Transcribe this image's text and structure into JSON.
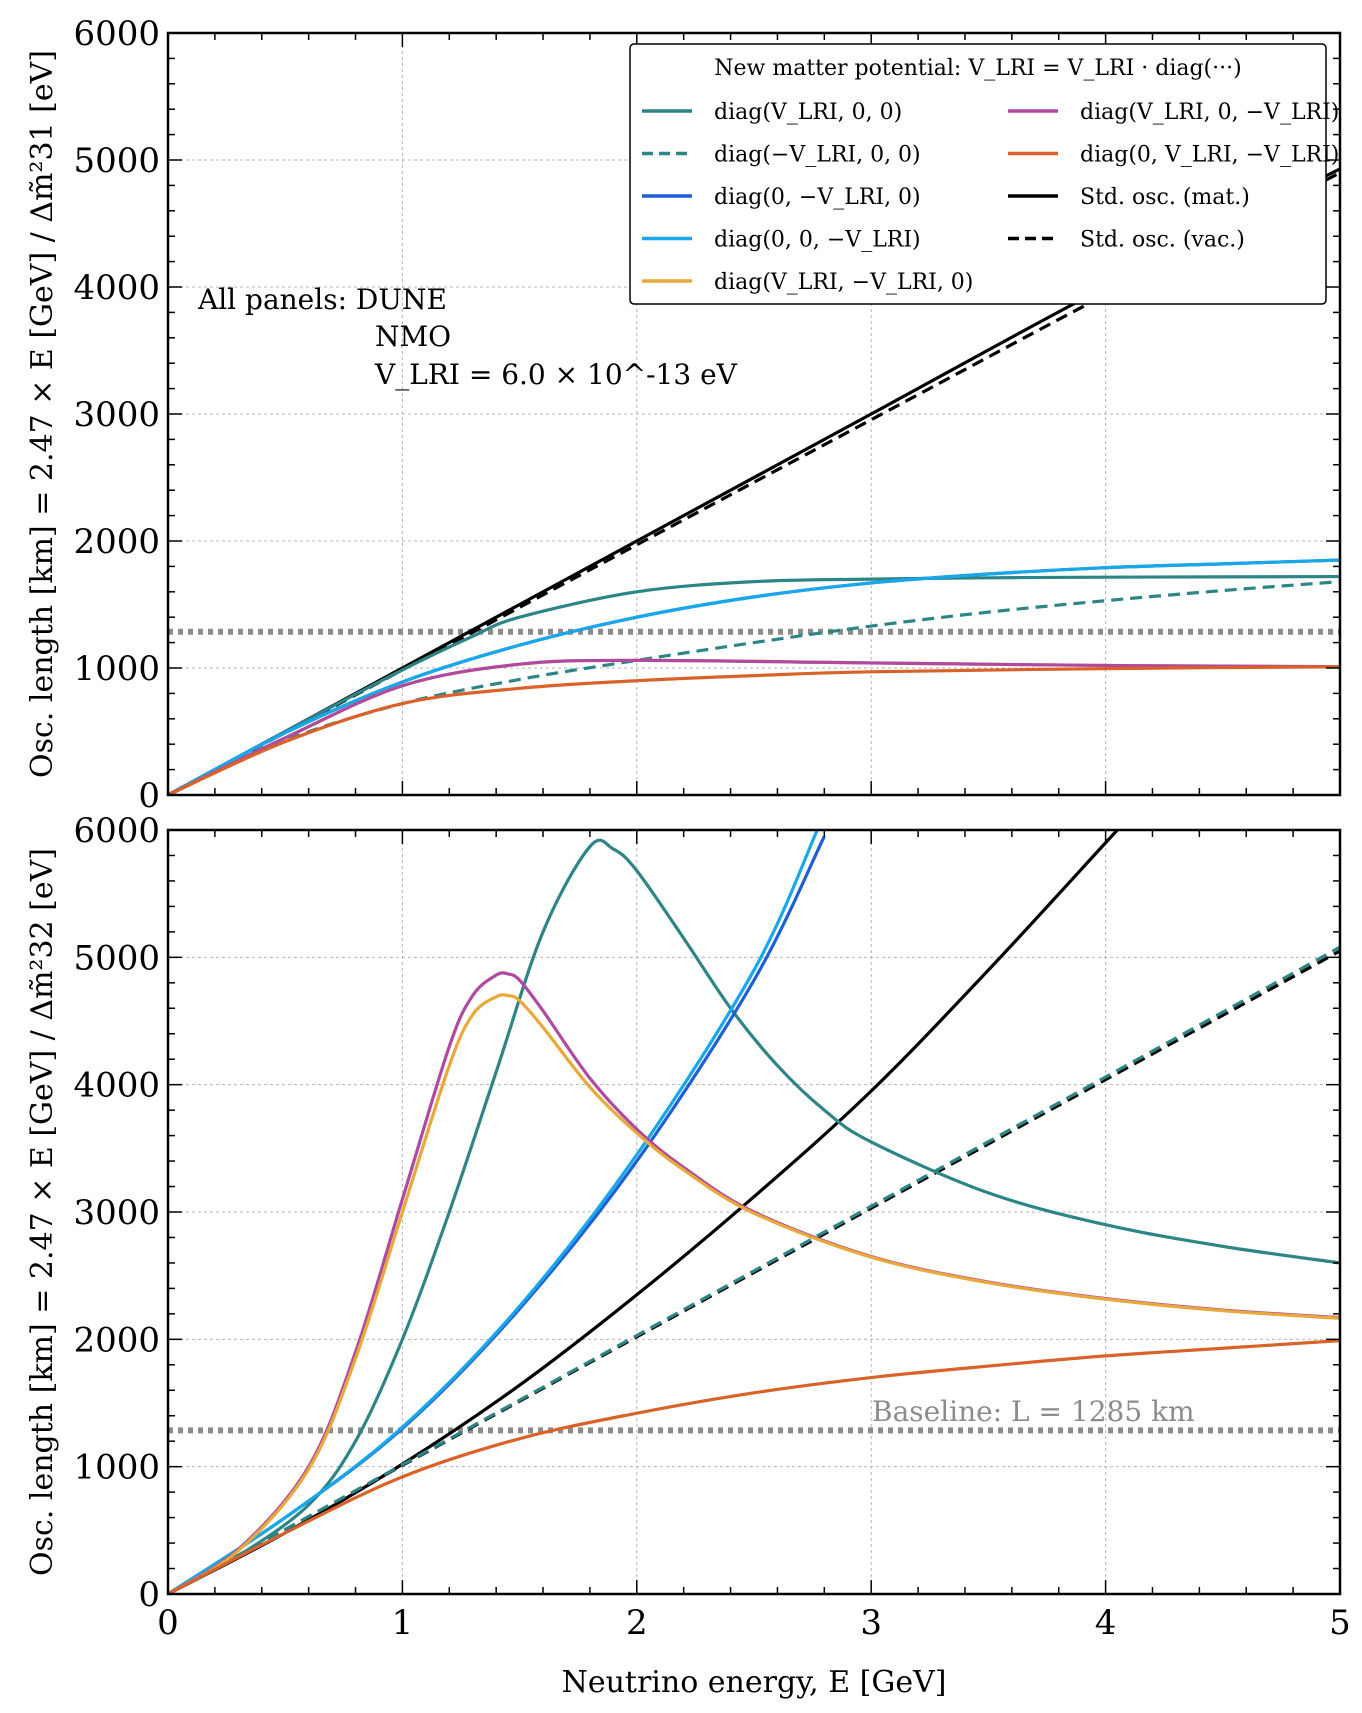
{
  "colors": {
    "teal": "#2e8585",
    "blue": "#1f5fd6",
    "lightblue": "#18a8ea",
    "orange": "#e8a93a",
    "magenta": "#b04aa0",
    "redorange": "#d9622a",
    "black": "#000000",
    "baseline": "#8c8c8c",
    "grid": "#b5b5b5"
  },
  "figure": {
    "xlabel": "Neutrino energy, E [GeV]",
    "annotation_lines": [
      "All panels: DUNE",
      "NMO",
      "V_LRI = 6.0 × 10^-13 eV"
    ],
    "baseline_label": "Baseline: L = 1285 km",
    "legend_title": "New matter potential: V_LRI = V_LRI · diag(···)",
    "legend_entries": [
      {
        "key": "s1",
        "label": "diag(V_LRI, 0, 0)",
        "color": "#2e8585",
        "dash": false
      },
      {
        "key": "s2",
        "label": "diag(−V_LRI, 0, 0)",
        "color": "#2e8585",
        "dash": true
      },
      {
        "key": "s3",
        "label": "diag(0, −V_LRI, 0)",
        "color": "#1f5fd6",
        "dash": false
      },
      {
        "key": "s4",
        "label": "diag(0, 0, −V_LRI)",
        "color": "#18a8ea",
        "dash": false
      },
      {
        "key": "s5",
        "label": "diag(V_LRI, −V_LRI, 0)",
        "color": "#e8a93a",
        "dash": false
      },
      {
        "key": "s6",
        "label": "diag(V_LRI, 0, −V_LRI)",
        "color": "#b04aa0",
        "dash": false
      },
      {
        "key": "s7",
        "label": "diag(0, V_LRI, −V_LRI)",
        "color": "#d9622a",
        "dash": false
      },
      {
        "key": "s8",
        "label": "Std. osc. (mat.)",
        "color": "#000000",
        "dash": false
      },
      {
        "key": "s9",
        "label": "Std. osc. (vac.)",
        "color": "#000000",
        "dash": true
      }
    ]
  },
  "chart_data": [
    {
      "type": "line",
      "panel": "top",
      "ylabel": "Osc. length [km] = 2.47 × E [GeV] / Δm̃²31 [eV]",
      "xlim": [
        0,
        5
      ],
      "ylim": [
        0,
        6000
      ],
      "xticks": [
        0,
        1,
        2,
        3,
        4,
        5
      ],
      "yticks": [
        0,
        1000,
        2000,
        3000,
        4000,
        5000,
        6000
      ],
      "grid": true,
      "baseline_value": 1285,
      "series": [
        {
          "key": "s8",
          "name": "Std. osc. (mat.)",
          "x": [
            0,
            1,
            2,
            3,
            4,
            5
          ],
          "y": [
            0,
            1000,
            2000,
            3000,
            4000,
            4930
          ]
        },
        {
          "key": "s9",
          "name": "Std. osc. (vac.)",
          "x": [
            0,
            1,
            2,
            3,
            4,
            5
          ],
          "y": [
            0,
            985,
            1970,
            2955,
            3940,
            4900
          ]
        },
        {
          "key": "s1",
          "name": "diag(V_LRI, 0, 0)",
          "x": [
            0,
            0.5,
            1,
            1.3,
            1.5,
            2,
            2.5,
            3,
            3.5,
            4,
            5
          ],
          "y": [
            0,
            500,
            985,
            1250,
            1400,
            1600,
            1680,
            1700,
            1710,
            1715,
            1720
          ]
        },
        {
          "key": "s2",
          "name": "diag(−V_LRI, 0, 0)",
          "x": [
            0,
            0.5,
            1,
            1.5,
            2,
            2.5,
            3,
            3.5,
            4,
            4.5,
            5
          ],
          "y": [
            0,
            430,
            720,
            910,
            1060,
            1200,
            1330,
            1440,
            1530,
            1610,
            1680
          ]
        },
        {
          "key": "s3",
          "name": "diag(0, −V_LRI, 0)",
          "x": [
            0,
            0.5,
            1,
            1.5,
            2,
            2.5,
            3,
            3.5,
            4,
            4.5,
            5
          ],
          "y": [
            0,
            490,
            890,
            1180,
            1400,
            1560,
            1670,
            1740,
            1790,
            1820,
            1850
          ]
        },
        {
          "key": "s4",
          "name": "diag(0, 0, −V_LRI)",
          "x": [
            0,
            0.5,
            1,
            1.5,
            2,
            2.5,
            3,
            3.5,
            4,
            4.5,
            5
          ],
          "y": [
            0,
            490,
            890,
            1180,
            1400,
            1560,
            1670,
            1740,
            1790,
            1820,
            1850
          ]
        },
        {
          "key": "s5",
          "name": "diag(V_LRI, −V_LRI, 0)",
          "x": [
            0,
            0.5,
            1,
            1.5,
            2,
            3,
            4,
            5
          ],
          "y": [
            0,
            450,
            860,
            1030,
            1060,
            1040,
            1020,
            1010
          ]
        },
        {
          "key": "s6",
          "name": "diag(V_LRI, 0, −V_LRI)",
          "x": [
            0,
            0.5,
            1,
            1.5,
            2,
            3,
            4,
            5
          ],
          "y": [
            0,
            450,
            860,
            1030,
            1060,
            1040,
            1020,
            1010
          ]
        },
        {
          "key": "s7",
          "name": "diag(0, V_LRI, −V_LRI)",
          "x": [
            0,
            0.5,
            1,
            1.5,
            2,
            2.5,
            3,
            4,
            5
          ],
          "y": [
            0,
            420,
            720,
            840,
            900,
            940,
            970,
            995,
            1010
          ]
        }
      ]
    },
    {
      "type": "line",
      "panel": "bottom",
      "ylabel": "Osc. length [km] = 2.47 × E [GeV] / Δm̃²32 [eV]",
      "xlim": [
        0,
        5
      ],
      "ylim": [
        0,
        6000
      ],
      "xticks": [
        0,
        1,
        2,
        3,
        4,
        5
      ],
      "yticks": [
        0,
        1000,
        2000,
        3000,
        4000,
        5000,
        6000
      ],
      "grid": true,
      "baseline_value": 1285,
      "series": [
        {
          "key": "s8",
          "name": "Std. osc. (mat.)",
          "x": [
            0,
            0.5,
            1,
            1.5,
            2,
            2.5,
            3,
            3.5,
            4,
            4.05
          ],
          "y": [
            0,
            480,
            1020,
            1640,
            2350,
            3120,
            3950,
            4900,
            5900,
            6000
          ]
        },
        {
          "key": "s9",
          "name": "Std. osc. (vac.)",
          "x": [
            0,
            1,
            2,
            3,
            4,
            5
          ],
          "y": [
            0,
            1010,
            2020,
            3030,
            4040,
            5050
          ]
        },
        {
          "key": "s2",
          "name": "diag(−V_LRI, 0, 0)",
          "x": [
            0,
            1,
            2,
            3,
            4,
            5
          ],
          "y": [
            0,
            1015,
            2030,
            3045,
            4060,
            5080
          ]
        },
        {
          "key": "s1",
          "name": "diag(V_LRI, 0, 0)",
          "x": [
            0,
            0.3,
            0.6,
            0.8,
            1,
            1.2,
            1.4,
            1.6,
            1.8,
            1.9,
            2,
            2.2,
            2.4,
            2.6,
            2.8,
            3,
            3.5,
            4,
            4.5,
            5
          ],
          "y": [
            0,
            300,
            700,
            1200,
            2000,
            3000,
            4100,
            5200,
            5870,
            5850,
            5680,
            5150,
            4600,
            4150,
            3800,
            3550,
            3150,
            2900,
            2730,
            2600
          ]
        },
        {
          "key": "s3",
          "name": "diag(0, −V_LRI, 0)",
          "x": [
            0,
            0.5,
            1,
            1.5,
            2,
            2.5,
            2.8
          ],
          "y": [
            0,
            600,
            1300,
            2240,
            3400,
            4820,
            5950
          ]
        },
        {
          "key": "s4",
          "name": "diag(0, 0, −V_LRI)",
          "x": [
            0,
            0.5,
            1,
            1.5,
            2,
            2.5,
            2.77
          ],
          "y": [
            0,
            600,
            1310,
            2260,
            3450,
            4900,
            6000
          ]
        },
        {
          "key": "s6",
          "name": "diag(V_LRI, 0, −V_LRI)",
          "x": [
            0,
            0.3,
            0.6,
            0.8,
            1,
            1.2,
            1.3,
            1.4,
            1.45,
            1.5,
            1.6,
            1.8,
            2,
            2.2,
            2.5,
            3,
            3.5,
            4,
            4.5,
            5
          ],
          "y": [
            0,
            350,
            1000,
            1900,
            3100,
            4300,
            4700,
            4860,
            4870,
            4820,
            4580,
            4050,
            3650,
            3350,
            3000,
            2650,
            2450,
            2320,
            2230,
            2170
          ]
        },
        {
          "key": "s5",
          "name": "diag(V_LRI, −V_LRI, 0)",
          "x": [
            0,
            0.3,
            0.6,
            0.8,
            1,
            1.2,
            1.3,
            1.4,
            1.45,
            1.5,
            1.6,
            1.8,
            2,
            2.2,
            2.5,
            3,
            3.5,
            4,
            4.5,
            5
          ],
          "y": [
            0,
            340,
            980,
            1850,
            3000,
            4150,
            4550,
            4690,
            4700,
            4660,
            4450,
            3980,
            3620,
            3330,
            2990,
            2645,
            2445,
            2315,
            2225,
            2165
          ]
        },
        {
          "key": "s7",
          "name": "diag(0, V_LRI, −V_LRI)",
          "x": [
            0,
            0.5,
            1,
            1.5,
            2,
            2.5,
            3,
            3.5,
            4,
            4.5,
            5
          ],
          "y": [
            0,
            480,
            920,
            1220,
            1420,
            1580,
            1700,
            1790,
            1870,
            1930,
            1990
          ]
        }
      ]
    }
  ]
}
